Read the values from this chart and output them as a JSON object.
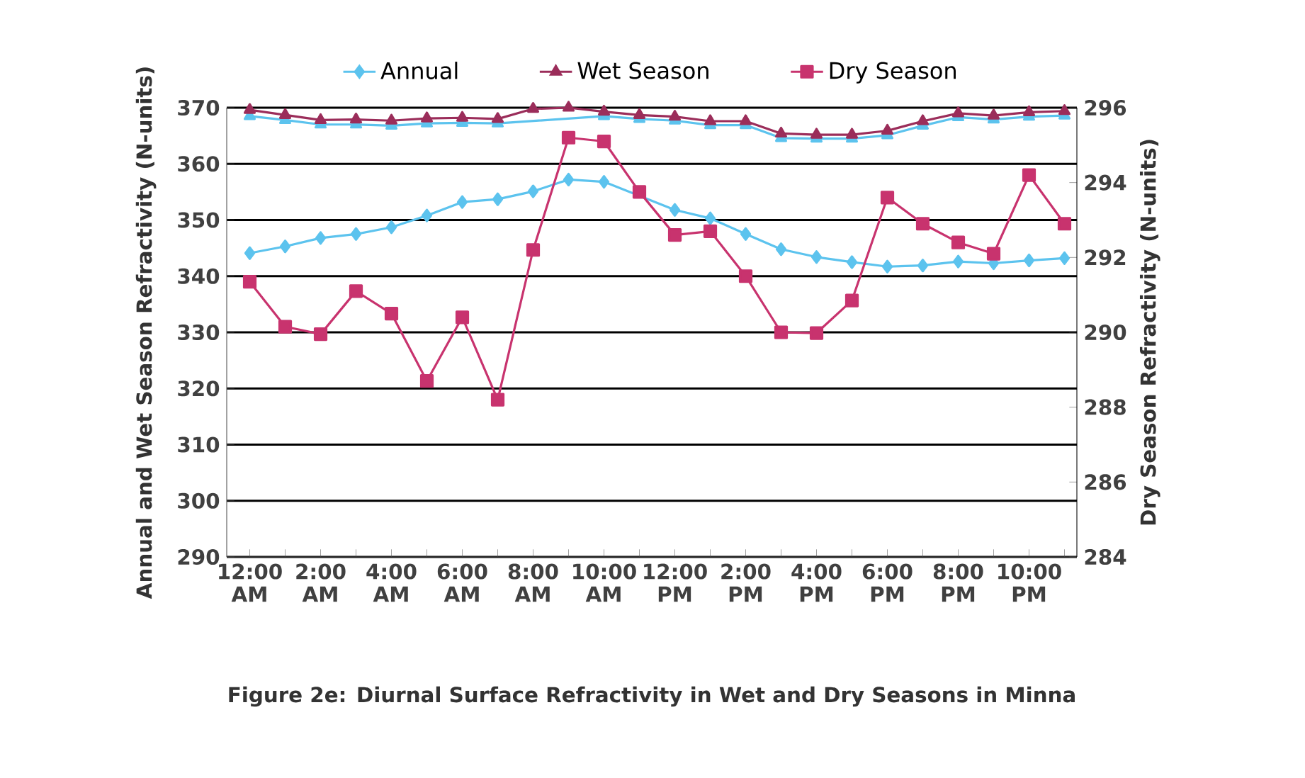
{
  "chart_data": {
    "type": "line",
    "title": "Figure 2e: Diurnal **Surface** Refractivity in Wet and Dry Seasons in Minna",
    "ylabel": "Annual and Wet Season Refractivity (N-units)",
    "y2label": "Dry Season  Refractivity (N-units)",
    "categories": [
      "12:00 AM",
      null,
      "2:00 AM",
      null,
      "4:00 AM",
      null,
      "6:00 AM",
      null,
      "8:00 AM",
      null,
      "10:00 AM",
      null,
      "12:00 PM",
      null,
      "2:00 PM",
      null,
      "4:00 PM",
      null,
      "6:00 PM",
      null,
      "8:00 PM",
      null,
      "10:00 PM",
      null
    ],
    "series": [
      {
        "name": "Annual",
        "color": "#5cc3ee",
        "marker": "diamond",
        "values": [
          344.1,
          345.3,
          346.8,
          347.5,
          348.7,
          350.8,
          353.2,
          353.7,
          355.1,
          357.2,
          356.8,
          null,
          351.8,
          350.3,
          347.5,
          344.8,
          343.4,
          342.5,
          341.7,
          341.9,
          342.6,
          342.3,
          342.8,
          343.2
        ]
      },
      {
        "color": "#5cc3ee",
        "marker": "triangle",
        "values": [
          368.5,
          367.8,
          367.0,
          367.0,
          366.8,
          367.2,
          367.3,
          367.2,
          null,
          null,
          368.5,
          368.0,
          367.7,
          366.9,
          366.9,
          364.6,
          364.5,
          364.5,
          365.1,
          366.8,
          368.3,
          367.9,
          368.4,
          368.6
        ]
      },
      {
        "name": "Wet Season",
        "color": "#9b2d5a",
        "marker": "triangle",
        "values": [
          369.6,
          368.7,
          367.8,
          367.9,
          367.7,
          368.1,
          368.2,
          368.0,
          369.8,
          370.0,
          369.3,
          368.7,
          368.4,
          367.6,
          367.6,
          365.4,
          365.2,
          365.2,
          365.9,
          367.6,
          369.0,
          368.6,
          369.2,
          369.4
        ]
      },
      {
        "name": "Dry Season",
        "color": "#c8336e",
        "marker": "square",
        "axis": "y2",
        "values": [
          291.35,
          290.15,
          289.95,
          291.1,
          290.5,
          288.7,
          290.4,
          288.2,
          292.2,
          295.2,
          295.1,
          293.75,
          292.6,
          292.7,
          291.5,
          290.0,
          289.98,
          290.85,
          293.6,
          292.9,
          292.4,
          292.1,
          294.2,
          292.9
        ]
      }
    ],
    "ylim": [
      290,
      370
    ],
    "yticks": [
      290,
      300,
      310,
      320,
      330,
      340,
      350,
      360,
      370
    ],
    "y2lim": [
      284,
      296
    ],
    "y2ticks": [
      284,
      286,
      288,
      290,
      292,
      294,
      296
    ],
    "grid": "y",
    "legend": "top"
  }
}
